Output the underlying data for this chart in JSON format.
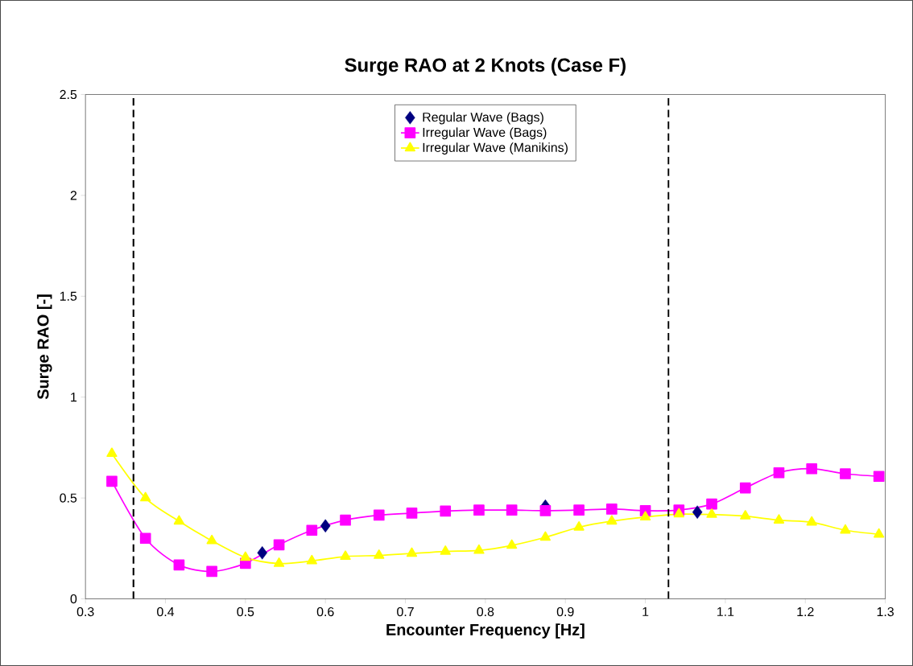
{
  "chart_data": {
    "type": "line",
    "title": "Surge RAO at 2 Knots (Case F)",
    "xlabel": "Encounter Frequency [Hz]",
    "ylabel": "Surge RAO [-]",
    "xlim": [
      0.3,
      1.3
    ],
    "ylim": [
      0,
      2.5
    ],
    "xticks": [
      0.3,
      0.4,
      0.5,
      0.6,
      0.7,
      0.8,
      0.9,
      1,
      1.1,
      1.2,
      1.3
    ],
    "yticks": [
      0,
      0.5,
      1,
      1.5,
      2,
      2.5
    ],
    "grid": false,
    "legend": "top",
    "ref_lines": [
      {
        "axis": "x",
        "value": 0.36,
        "color": "#000000",
        "line_style": "dashed"
      },
      {
        "axis": "x",
        "value": 1.029,
        "color": "#000000",
        "line_style": "dashed"
      }
    ],
    "series": [
      {
        "name": "Regular Wave (Bags)",
        "type": "scatter",
        "color": "#000080",
        "marker": "diamond",
        "x": [
          0.521,
          0.6,
          0.875,
          1.065
        ],
        "values": [
          0.228,
          0.362,
          0.46,
          0.43
        ]
      },
      {
        "name": "Irregular Wave (Bags)",
        "color": "#ff00ff",
        "marker": "square",
        "x": [
          0.333,
          0.375,
          0.417,
          0.458,
          0.5,
          0.542,
          0.583,
          0.625,
          0.667,
          0.708,
          0.75,
          0.792,
          0.833,
          0.875,
          0.917,
          0.958,
          1.0,
          1.042,
          1.083,
          1.125,
          1.167,
          1.208,
          1.25,
          1.292
        ],
        "values": [
          0.583,
          0.3,
          0.168,
          0.136,
          0.176,
          0.268,
          0.34,
          0.39,
          0.415,
          0.425,
          0.435,
          0.44,
          0.44,
          0.437,
          0.44,
          0.445,
          0.437,
          0.44,
          0.47,
          0.55,
          0.625,
          0.645,
          0.62,
          0.607
        ]
      },
      {
        "name": "Irregular Wave (Manikins)",
        "color": "#ffff00",
        "marker": "triangle",
        "x": [
          0.333,
          0.375,
          0.417,
          0.458,
          0.5,
          0.542,
          0.583,
          0.625,
          0.667,
          0.708,
          0.75,
          0.792,
          0.833,
          0.875,
          0.917,
          0.958,
          1.0,
          1.042,
          1.083,
          1.125,
          1.167,
          1.208,
          1.25,
          1.292
        ],
        "values": [
          0.72,
          0.5,
          0.385,
          0.288,
          0.205,
          0.175,
          0.188,
          0.21,
          0.215,
          0.225,
          0.235,
          0.24,
          0.265,
          0.305,
          0.355,
          0.385,
          0.405,
          0.42,
          0.418,
          0.41,
          0.39,
          0.38,
          0.34,
          0.32
        ]
      }
    ]
  }
}
